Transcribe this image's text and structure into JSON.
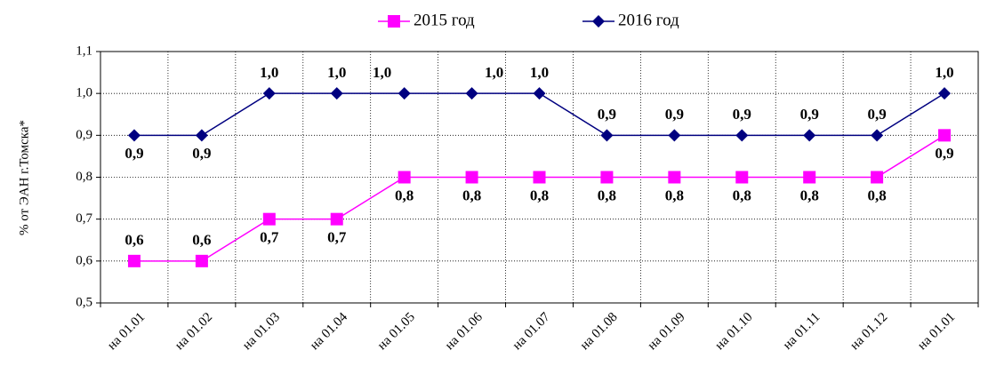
{
  "chart_data": {
    "type": "line",
    "categories": [
      "на 01.01",
      "на 01.02",
      "на 01.03",
      "на 01.04",
      "на 01.05",
      "на 01.06",
      "на 01.07",
      "на 01.08",
      "на 01.09",
      "на 01.10",
      "на 01.11",
      "на 01.12",
      "на 01.01"
    ],
    "y_label": "% от ЭАН г.Томска*",
    "series": [
      {
        "name": "2015 год",
        "color": "#ff00ff",
        "marker": "square",
        "values": [
          0.6,
          0.6,
          0.7,
          0.7,
          0.8,
          0.8,
          0.8,
          0.8,
          0.8,
          0.8,
          0.8,
          0.8,
          0.9
        ],
        "value_labels": [
          "0,6",
          "0,6",
          "0,7",
          "0,7",
          "0,8",
          "0,8",
          "0,8",
          "0,8",
          "0,8",
          "0,8",
          "0,8",
          "0,8",
          "0,9"
        ]
      },
      {
        "name": "2016 год",
        "color": "#000080",
        "marker": "diamond",
        "values": [
          0.9,
          0.9,
          1.0,
          1.0,
          1.0,
          1.0,
          1.0,
          0.9,
          0.9,
          0.9,
          0.9,
          0.9,
          1.0
        ],
        "value_labels": [
          "0,9",
          "0,9",
          "1,0",
          "1,0",
          "1,0",
          "1,0",
          "1,0",
          "0,9",
          "0,9",
          "0,9",
          "0,9",
          "0,9",
          "1,0"
        ]
      }
    ],
    "ylim": [
      0.5,
      1.1
    ],
    "yticks": [
      {
        "value": 0.5,
        "label": "0,5"
      },
      {
        "value": 0.6,
        "label": "0,6"
      },
      {
        "value": 0.7,
        "label": "0,7"
      },
      {
        "value": 0.8,
        "label": "0,8"
      },
      {
        "value": 0.9,
        "label": "0,9"
      },
      {
        "value": 1.0,
        "label": "1,0"
      },
      {
        "value": 1.1,
        "label": "1,1"
      }
    ],
    "grid": true,
    "legend": "top"
  }
}
